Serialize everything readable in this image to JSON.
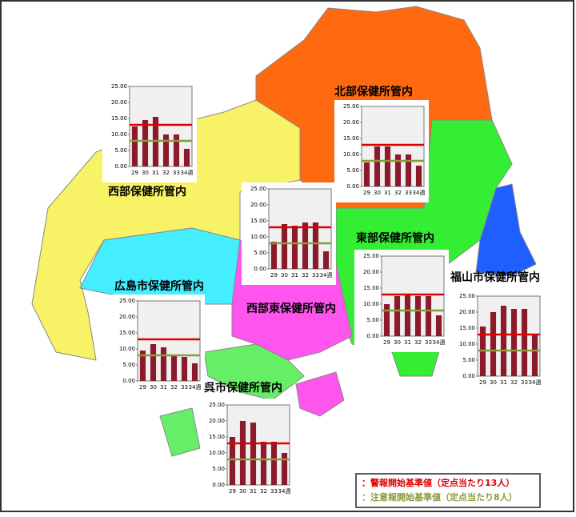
{
  "chart_data": [
    {
      "type": "bar",
      "title": "西部保健所管内",
      "categories": [
        "29",
        "30",
        "31",
        "32",
        "33",
        "34週"
      ],
      "values": [
        12.5,
        14.5,
        15.5,
        10,
        10,
        5.5
      ],
      "color": "#8b1a2b",
      "ylim": [
        0,
        25
      ],
      "yticks": [
        {
          "value": 0,
          "label": "0.00"
        },
        {
          "value": 5,
          "label": "5.00"
        },
        {
          "value": 10,
          "label": "10.00"
        },
        {
          "value": 15,
          "label": "15.00"
        },
        {
          "value": 20,
          "label": "20.00"
        },
        {
          "value": 25,
          "label": "25.00"
        }
      ]
    },
    {
      "type": "bar",
      "title": "北部保健所管内",
      "categories": [
        "29",
        "30",
        "31",
        "32",
        "33",
        "34週"
      ],
      "values": [
        7.5,
        12.5,
        12.5,
        10,
        10,
        6.5
      ],
      "color": "#8b1a2b",
      "ylim": [
        0,
        25
      ],
      "yticks": [
        {
          "value": 0,
          "label": "0.00"
        },
        {
          "value": 5,
          "label": "5.00"
        },
        {
          "value": 10,
          "label": "10.00"
        },
        {
          "value": 15,
          "label": "15.00"
        },
        {
          "value": 20,
          "label": "20.00"
        },
        {
          "value": 25,
          "label": "25.00"
        }
      ]
    },
    {
      "type": "bar",
      "title": "西部東保健所管内",
      "categories": [
        "29",
        "30",
        "31",
        "32",
        "33",
        "34週"
      ],
      "values": [
        8.5,
        14,
        13.5,
        14.5,
        14.5,
        5.5
      ],
      "color": "#8b1a2b",
      "ylim": [
        0,
        25
      ],
      "yticks": [
        {
          "value": 0,
          "label": "0.00"
        },
        {
          "value": 5,
          "label": "5.00"
        },
        {
          "value": 10,
          "label": "10.00"
        },
        {
          "value": 15,
          "label": "15.00"
        },
        {
          "value": 20,
          "label": "20.00"
        },
        {
          "value": 25,
          "label": "25.00"
        }
      ]
    },
    {
      "type": "bar",
      "title": "東部保健所管内",
      "categories": [
        "29",
        "30",
        "31",
        "32",
        "33",
        "34週"
      ],
      "values": [
        10,
        12.5,
        13,
        12.5,
        12.5,
        6.5
      ],
      "color": "#8b1a2b",
      "ylim": [
        0,
        25
      ],
      "yticks": [
        {
          "value": 0,
          "label": "0.00"
        },
        {
          "value": 5,
          "label": "5.00"
        },
        {
          "value": 10,
          "label": "10.00"
        },
        {
          "value": 15,
          "label": "15.00"
        },
        {
          "value": 20,
          "label": "20.00"
        },
        {
          "value": 25,
          "label": "25.00"
        }
      ]
    },
    {
      "type": "bar",
      "title": "広島市保健所管内",
      "categories": [
        "29",
        "30",
        "31",
        "32",
        "33",
        "34週"
      ],
      "values": [
        9.5,
        11.5,
        10.5,
        8,
        7.5,
        5.5
      ],
      "color": "#8b1a2b",
      "ylim": [
        0,
        25
      ],
      "yticks": [
        {
          "value": 0,
          "label": "0.00"
        },
        {
          "value": 5,
          "label": "5.00"
        },
        {
          "value": 10,
          "label": "10.00"
        },
        {
          "value": 15,
          "label": "15.00"
        },
        {
          "value": 20,
          "label": "20.00"
        },
        {
          "value": 25,
          "label": "25.00"
        }
      ]
    },
    {
      "type": "bar",
      "title": "福山市保健所管内",
      "categories": [
        "29",
        "30",
        "31",
        "32",
        "33",
        "34週"
      ],
      "values": [
        15.5,
        20,
        22,
        21,
        21,
        13
      ],
      "color": "#8b1a2b",
      "ylim": [
        0,
        25
      ],
      "yticks": [
        {
          "value": 0,
          "label": "0.00"
        },
        {
          "value": 5,
          "label": "5.00"
        },
        {
          "value": 10,
          "label": "10.00"
        },
        {
          "value": 15,
          "label": "15.00"
        },
        {
          "value": 20,
          "label": "20.00"
        },
        {
          "value": 25,
          "label": "25.00"
        }
      ]
    },
    {
      "type": "bar",
      "title": "呉市保健所管内",
      "categories": [
        "29",
        "30",
        "31",
        "32",
        "33",
        "34週"
      ],
      "values": [
        15,
        20,
        19.5,
        13.5,
        13.5,
        10
      ],
      "color": "#8b1a2b",
      "ylim": [
        0,
        25
      ],
      "yticks": [
        {
          "value": 0,
          "label": "0.00"
        },
        {
          "value": 5,
          "label": "5.00"
        },
        {
          "value": 10,
          "label": "10.00"
        },
        {
          "value": 15,
          "label": "15.00"
        },
        {
          "value": 20,
          "label": "20.00"
        },
        {
          "value": 25,
          "label": "25.00"
        }
      ]
    }
  ],
  "thresholds": [
    {
      "label": "：警報開始基準値（定点当たり13人）",
      "value": 13,
      "color": "#dd0000"
    },
    {
      "label": "：注意報開始基準値（定点当たり8人）",
      "value": 8,
      "color": "#8a9a3a"
    }
  ]
}
